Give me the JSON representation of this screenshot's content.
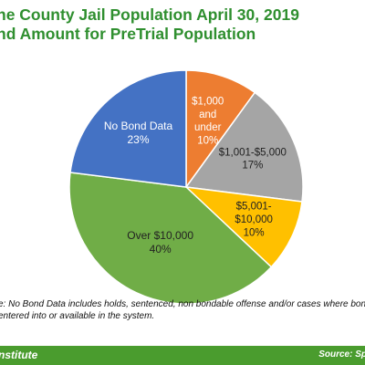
{
  "header": {
    "title_line1": "ne County Jail Population April 30, 2019",
    "title_line2": "nd Amount for PreTrial Population"
  },
  "chart_data": {
    "type": "pie",
    "title": "ne County Jail Population April 30, 2019 nd Amount for PreTrial Population",
    "slices": [
      {
        "label": "$1,000 and under",
        "label_lines": [
          "$1,000",
          "and",
          "under"
        ],
        "value": 10,
        "value_text": "10%",
        "color": "#ed7d31",
        "label_color": "#ffffff"
      },
      {
        "label": "$1,001-$5,000",
        "label_lines": [
          "$1,001-$5,000"
        ],
        "value": 17,
        "value_text": "17%",
        "color": "#a5a5a5",
        "label_color": "#222222"
      },
      {
        "label": "$5,001-$10,000",
        "label_lines": [
          "$5,001-",
          "$10,000"
        ],
        "value": 10,
        "value_text": "10%",
        "color": "#ffc000",
        "label_color": "#222222"
      },
      {
        "label": "Over $10,000",
        "label_lines": [
          "Over $10,000"
        ],
        "value": 40,
        "value_text": "40%",
        "color": "#70ad47",
        "label_color": "#222222"
      },
      {
        "label": "No Bond Data",
        "label_lines": [
          "No Bond Data"
        ],
        "value": 23,
        "value_text": "23%",
        "color": "#4472c4",
        "label_color": "#ffffff"
      }
    ]
  },
  "note": {
    "line1": "e: No Bond Data includes holds, sentenced, non bondable offense and/or cases where bond in",
    "line2": "entered into or available in the system."
  },
  "footer": {
    "org": "nstitute",
    "source": "Source: Sp"
  }
}
